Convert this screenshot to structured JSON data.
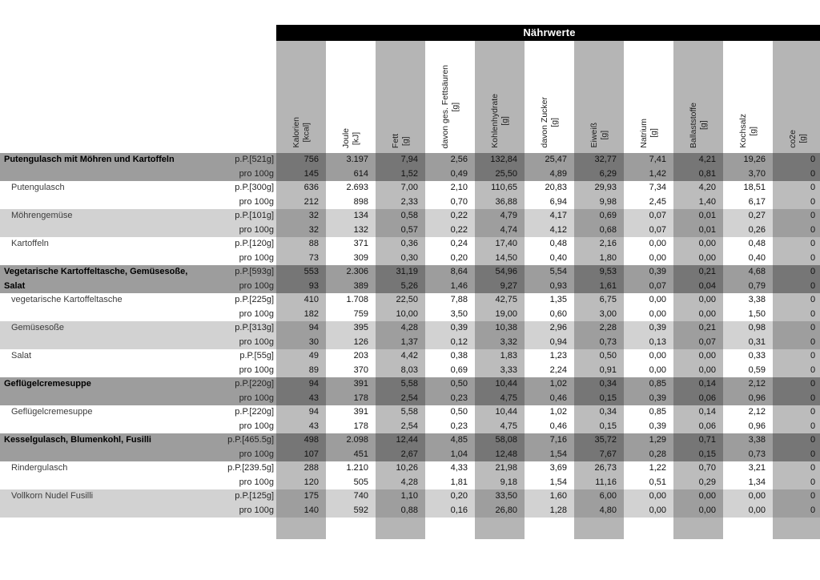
{
  "title": "Nährwerte",
  "columns": [
    {
      "name": "Kalorien",
      "unit": "[kcal]",
      "striped": true
    },
    {
      "name": "Joule",
      "unit": "[kJ]",
      "striped": false
    },
    {
      "name": "Fett",
      "unit": "[g]",
      "striped": true
    },
    {
      "name": "davon ges. Fettsäuren",
      "unit": "[g]",
      "striped": false
    },
    {
      "name": "Kohlenhydrate",
      "unit": "[g]",
      "striped": true
    },
    {
      "name": "davon Zucker",
      "unit": "[g]",
      "striped": false
    },
    {
      "name": "Eiweiß",
      "unit": "[g]",
      "striped": true
    },
    {
      "name": "Natrium",
      "unit": "[g]",
      "striped": false
    },
    {
      "name": "Ballaststoffe",
      "unit": "[g]",
      "striped": true
    },
    {
      "name": "Kochsalz",
      "unit": "[g]",
      "striped": false
    },
    {
      "name": "co2e",
      "unit": "[g]",
      "striped": true
    }
  ],
  "row_labels": {
    "per_100g": "pro 100g"
  },
  "dishes": [
    {
      "name": "Putengulasch mit Möhren und Kartoffeln",
      "group": true,
      "shade": "group",
      "portion": "p.P.[521g]",
      "per_portion": [
        "756",
        "3.197",
        "7,94",
        "2,56",
        "132,84",
        "25,47",
        "32,77",
        "7,41",
        "4,21",
        "19,26",
        "0"
      ],
      "per_100g": [
        "145",
        "614",
        "1,52",
        "0,49",
        "25,50",
        "4,89",
        "6,29",
        "1,42",
        "0,81",
        "3,70",
        "0"
      ]
    },
    {
      "name": "Putengulasch",
      "group": false,
      "shade": "white",
      "portion": "p.P.[300g]",
      "per_portion": [
        "636",
        "2.693",
        "7,00",
        "2,10",
        "110,65",
        "20,83",
        "29,93",
        "7,34",
        "4,20",
        "18,51",
        "0"
      ],
      "per_100g": [
        "212",
        "898",
        "2,33",
        "0,70",
        "36,88",
        "6,94",
        "9,98",
        "2,45",
        "1,40",
        "6,17",
        "0"
      ]
    },
    {
      "name": "Möhrengemüse",
      "group": false,
      "shade": "light",
      "portion": "p.P.[101g]",
      "per_portion": [
        "32",
        "134",
        "0,58",
        "0,22",
        "4,79",
        "4,17",
        "0,69",
        "0,07",
        "0,01",
        "0,27",
        "0"
      ],
      "per_100g": [
        "32",
        "132",
        "0,57",
        "0,22",
        "4,74",
        "4,12",
        "0,68",
        "0,07",
        "0,01",
        "0,26",
        "0"
      ]
    },
    {
      "name": "Kartoffeln",
      "group": false,
      "shade": "white",
      "portion": "p.P.[120g]",
      "per_portion": [
        "88",
        "371",
        "0,36",
        "0,24",
        "17,40",
        "0,48",
        "2,16",
        "0,00",
        "0,00",
        "0,48",
        "0"
      ],
      "per_100g": [
        "73",
        "309",
        "0,30",
        "0,20",
        "14,50",
        "0,40",
        "1,80",
        "0,00",
        "0,00",
        "0,40",
        "0"
      ]
    },
    {
      "name": "Vegetarische Kartoffeltasche, Gemüsesoße, Salat",
      "group": true,
      "shade": "group",
      "portion": "p.P.[593g]",
      "per_portion": [
        "553",
        "2.306",
        "31,19",
        "8,64",
        "54,96",
        "5,54",
        "9,53",
        "0,39",
        "0,21",
        "4,68",
        "0"
      ],
      "per_100g": [
        "93",
        "389",
        "5,26",
        "1,46",
        "9,27",
        "0,93",
        "1,61",
        "0,07",
        "0,04",
        "0,79",
        "0"
      ]
    },
    {
      "name": "vegetarische Kartoffeltasche",
      "group": false,
      "shade": "white",
      "portion": "p.P.[225g]",
      "per_portion": [
        "410",
        "1.708",
        "22,50",
        "7,88",
        "42,75",
        "1,35",
        "6,75",
        "0,00",
        "0,00",
        "3,38",
        "0"
      ],
      "per_100g": [
        "182",
        "759",
        "10,00",
        "3,50",
        "19,00",
        "0,60",
        "3,00",
        "0,00",
        "0,00",
        "1,50",
        "0"
      ]
    },
    {
      "name": "Gemüsesoße",
      "group": false,
      "shade": "light",
      "portion": "p.P.[313g]",
      "per_portion": [
        "94",
        "395",
        "4,28",
        "0,39",
        "10,38",
        "2,96",
        "2,28",
        "0,39",
        "0,21",
        "0,98",
        "0"
      ],
      "per_100g": [
        "30",
        "126",
        "1,37",
        "0,12",
        "3,32",
        "0,94",
        "0,73",
        "0,13",
        "0,07",
        "0,31",
        "0"
      ]
    },
    {
      "name": "Salat",
      "group": false,
      "shade": "white",
      "portion": "p.P.[55g]",
      "per_portion": [
        "49",
        "203",
        "4,42",
        "0,38",
        "1,83",
        "1,23",
        "0,50",
        "0,00",
        "0,00",
        "0,33",
        "0"
      ],
      "per_100g": [
        "89",
        "370",
        "8,03",
        "0,69",
        "3,33",
        "2,24",
        "0,91",
        "0,00",
        "0,00",
        "0,59",
        "0"
      ]
    },
    {
      "name": "Geflügelcremesuppe",
      "group": true,
      "shade": "group",
      "portion": "p.P.[220g]",
      "per_portion": [
        "94",
        "391",
        "5,58",
        "0,50",
        "10,44",
        "1,02",
        "0,34",
        "0,85",
        "0,14",
        "2,12",
        "0"
      ],
      "per_100g": [
        "43",
        "178",
        "2,54",
        "0,23",
        "4,75",
        "0,46",
        "0,15",
        "0,39",
        "0,06",
        "0,96",
        "0"
      ]
    },
    {
      "name": "Geflügelcremesuppe",
      "group": false,
      "shade": "white",
      "portion": "p.P.[220g]",
      "per_portion": [
        "94",
        "391",
        "5,58",
        "0,50",
        "10,44",
        "1,02",
        "0,34",
        "0,85",
        "0,14",
        "2,12",
        "0"
      ],
      "per_100g": [
        "43",
        "178",
        "2,54",
        "0,23",
        "4,75",
        "0,46",
        "0,15",
        "0,39",
        "0,06",
        "0,96",
        "0"
      ]
    },
    {
      "name": "Kesselgulasch, Blumenkohl, Fusilli",
      "group": true,
      "shade": "group",
      "portion": "p.P.[465.5g]",
      "per_portion": [
        "498",
        "2.098",
        "12,44",
        "4,85",
        "58,08",
        "7,16",
        "35,72",
        "1,29",
        "0,71",
        "3,38",
        "0"
      ],
      "per_100g": [
        "107",
        "451",
        "2,67",
        "1,04",
        "12,48",
        "1,54",
        "7,67",
        "0,28",
        "0,15",
        "0,73",
        "0"
      ]
    },
    {
      "name": "Rindergulasch",
      "group": false,
      "shade": "white",
      "portion": "p.P.[239.5g]",
      "per_portion": [
        "288",
        "1.210",
        "10,26",
        "4,33",
        "21,98",
        "3,69",
        "26,73",
        "1,22",
        "0,70",
        "3,21",
        "0"
      ],
      "per_100g": [
        "120",
        "505",
        "4,28",
        "1,81",
        "9,18",
        "1,54",
        "11,16",
        "0,51",
        "0,29",
        "1,34",
        "0"
      ]
    },
    {
      "name": "Vollkorn Nudel Fusilli",
      "group": false,
      "shade": "light",
      "portion": "p.P.[125g]",
      "per_portion": [
        "175",
        "740",
        "1,10",
        "0,20",
        "33,50",
        "1,60",
        "6,00",
        "0,00",
        "0,00",
        "0,00",
        "0"
      ],
      "per_100g": [
        "140",
        "592",
        "0,88",
        "0,16",
        "26,80",
        "1,28",
        "4,80",
        "0,00",
        "0,00",
        "0,00",
        "0"
      ]
    }
  ],
  "colors": {
    "title_bar_bg": "#000000",
    "title_text": "#ffffff",
    "stripe_on_white": "#bcbcbc",
    "stripe_on_light": "#9e9e9e",
    "stripe_on_group": "#767676",
    "row_light_bg": "#d2d2d2",
    "row_group_bg": "#9d9d9d",
    "header_stripe": "#b5b5b5"
  }
}
